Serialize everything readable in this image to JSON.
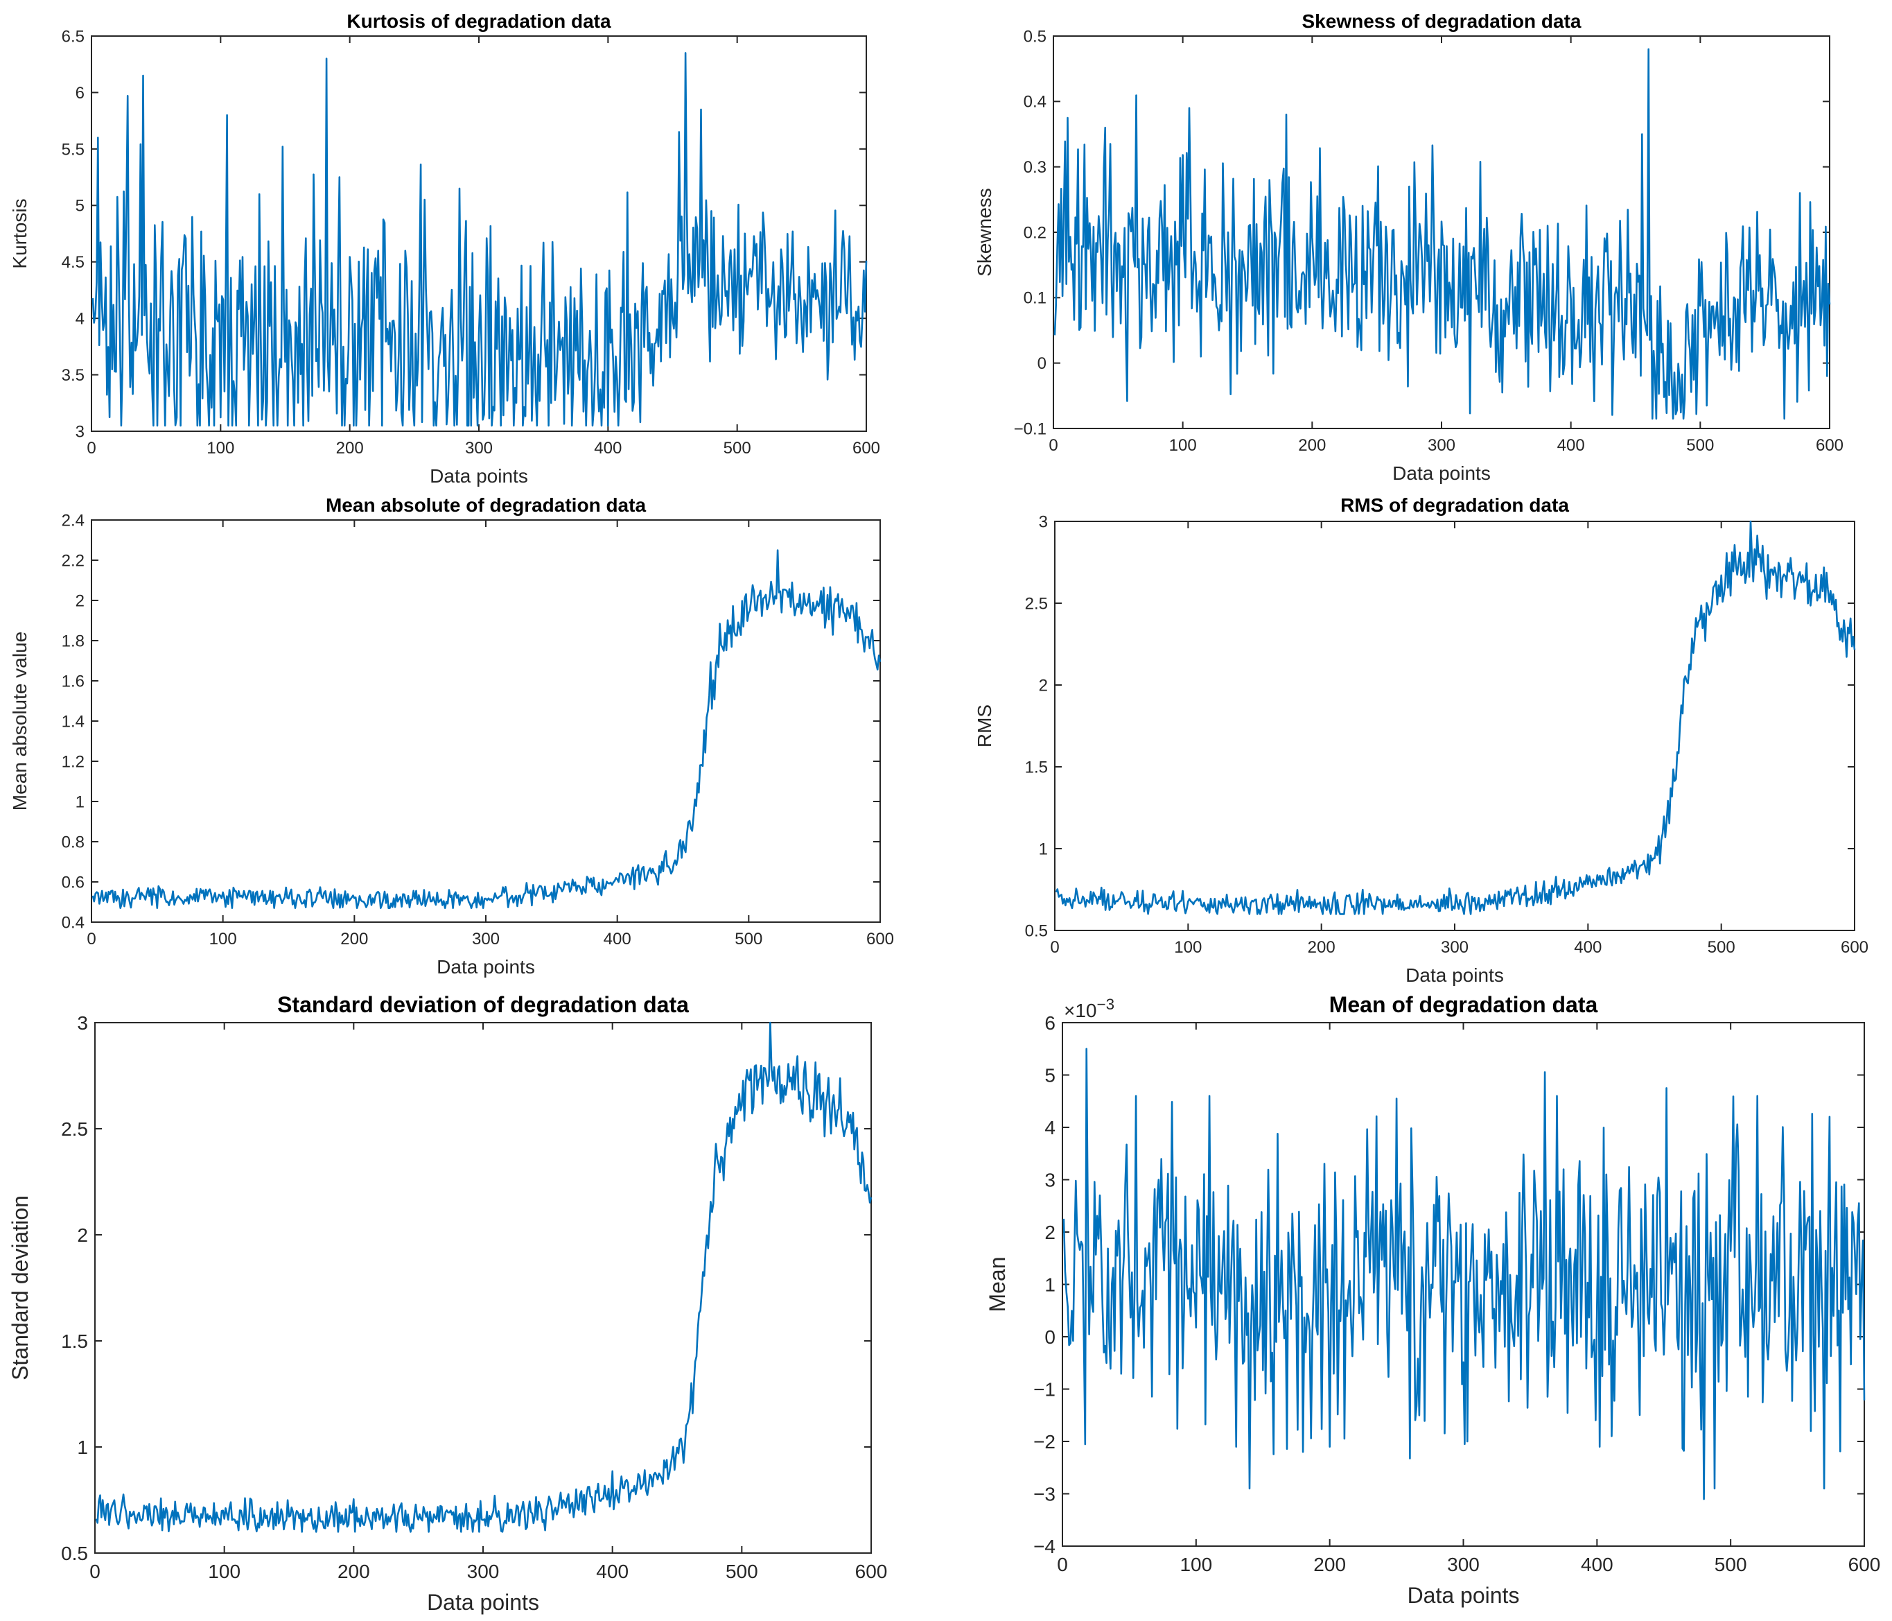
{
  "figure": {
    "background": "#ffffff",
    "line_color": "#0072bd",
    "axis_color": "#262626"
  },
  "chart_data": [
    {
      "id": "kurtosis",
      "type": "line",
      "title": "Kurtosis of degradation data",
      "xlabel": "Data points",
      "ylabel": "Kurtosis",
      "xlim": [
        0,
        600
      ],
      "ylim": [
        3,
        6.5
      ],
      "xticks": [
        0,
        100,
        200,
        300,
        400,
        500,
        600
      ],
      "yticks": [
        3,
        3.5,
        4,
        4.5,
        5,
        5.5,
        6,
        6.5
      ],
      "exponent": "",
      "grid": false,
      "x_range": [
        1,
        600
      ],
      "series": [
        {
          "name": "Kurtosis",
          "color": "#0072bd",
          "baseline": [
            [
              0,
              4.0
            ],
            [
              50,
              3.95
            ],
            [
              100,
              3.9
            ],
            [
              200,
              3.8
            ],
            [
              300,
              3.7
            ],
            [
              400,
              3.55
            ],
            [
              440,
              3.9
            ],
            [
              455,
              4.3
            ],
            [
              480,
              4.35
            ],
            [
              560,
              4.25
            ],
            [
              600,
              3.95
            ]
          ],
          "noise_amplitude": [
            [
              0,
              0.6
            ],
            [
              420,
              0.5
            ],
            [
              440,
              0.3
            ],
            [
              600,
              0.35
            ]
          ],
          "spikes": [
            [
              5,
              5.6
            ],
            [
              28,
              5.97
            ],
            [
              40,
              6.15
            ],
            [
              105,
              5.8
            ],
            [
              130,
              5.1
            ],
            [
              148,
              5.52
            ],
            [
              182,
              6.3
            ],
            [
              192,
              5.25
            ],
            [
              258,
              5.05
            ],
            [
              285,
              5.15
            ],
            [
              455,
              5.65
            ],
            [
              460,
              6.35
            ],
            [
              472,
              5.85
            ],
            [
              480,
              4.95
            ]
          ],
          "clip": [
            3.05,
            6.4
          ],
          "seed": 11
        }
      ]
    },
    {
      "id": "skewness",
      "type": "line",
      "title": "Skewness of degradation data",
      "xlabel": "Data points",
      "ylabel": "Skewness",
      "xlim": [
        0,
        600
      ],
      "ylim": [
        -0.1,
        0.5
      ],
      "xticks": [
        0,
        100,
        200,
        300,
        400,
        500,
        600
      ],
      "yticks": [
        -0.1,
        0,
        0.1,
        0.2,
        0.3,
        0.4,
        0.5
      ],
      "exponent": "",
      "grid": false,
      "x_range": [
        1,
        600
      ],
      "series": [
        {
          "name": "Skewness",
          "color": "#0072bd",
          "baseline": [
            [
              0,
              0.17
            ],
            [
              100,
              0.15
            ],
            [
              200,
              0.14
            ],
            [
              300,
              0.12
            ],
            [
              400,
              0.1
            ],
            [
              440,
              0.1
            ],
            [
              450,
              0.09
            ],
            [
              465,
              0.0
            ],
            [
              480,
              -0.02
            ],
            [
              500,
              0.05
            ],
            [
              550,
              0.09
            ],
            [
              600,
              0.1
            ]
          ],
          "noise_amplitude": [
            [
              0,
              0.09
            ],
            [
              400,
              0.07
            ],
            [
              600,
              0.06
            ]
          ],
          "spikes": [
            [
              40,
              0.36
            ],
            [
              105,
              0.39
            ],
            [
              180,
              0.38
            ],
            [
              275,
              0.27
            ],
            [
              455,
              0.35
            ],
            [
              460,
              0.48
            ],
            [
              565,
              -0.085
            ],
            [
              598,
              -0.02
            ]
          ],
          "clip": [
            -0.085,
            0.48
          ],
          "seed": 23
        }
      ]
    },
    {
      "id": "mean-absolute",
      "type": "line",
      "title": "Mean absolute of degradation data",
      "xlabel": "Data points",
      "ylabel": "Mean absolute value",
      "xlim": [
        0,
        600
      ],
      "ylim": [
        0.4,
        2.4
      ],
      "xticks": [
        0,
        100,
        200,
        300,
        400,
        500,
        600
      ],
      "yticks": [
        0.4,
        0.6,
        0.8,
        1,
        1.2,
        1.4,
        1.6,
        1.8,
        2,
        2.2,
        2.4
      ],
      "exponent": "",
      "grid": false,
      "x_range": [
        1,
        600
      ],
      "series": [
        {
          "name": "Mean absolute value",
          "color": "#0072bd",
          "baseline": [
            [
              0,
              0.53
            ],
            [
              100,
              0.52
            ],
            [
              200,
              0.51
            ],
            [
              300,
              0.51
            ],
            [
              350,
              0.55
            ],
            [
              400,
              0.61
            ],
            [
              430,
              0.66
            ],
            [
              445,
              0.72
            ],
            [
              455,
              0.9
            ],
            [
              462,
              1.05
            ],
            [
              470,
              1.5
            ],
            [
              478,
              1.75
            ],
            [
              490,
              1.88
            ],
            [
              500,
              1.96
            ],
            [
              510,
              2.0
            ],
            [
              520,
              2.02
            ],
            [
              560,
              1.97
            ],
            [
              580,
              1.92
            ],
            [
              600,
              1.7
            ]
          ],
          "noise_amplitude": [
            [
              0,
              0.025
            ],
            [
              440,
              0.03
            ],
            [
              470,
              0.06
            ],
            [
              600,
              0.05
            ]
          ],
          "spikes": [
            [
              522,
              2.25
            ]
          ],
          "clip": [
            0.47,
            2.25
          ],
          "seed": 37
        }
      ]
    },
    {
      "id": "rms",
      "type": "line",
      "title": "RMS of degradation data",
      "xlabel": "Data points",
      "ylabel": "RMS",
      "xlim": [
        0,
        600
      ],
      "ylim": [
        0.5,
        3
      ],
      "xticks": [
        0,
        100,
        200,
        300,
        400,
        500,
        600
      ],
      "yticks": [
        0.5,
        1,
        1.5,
        2,
        2.5,
        3
      ],
      "exponent": "",
      "grid": false,
      "x_range": [
        1,
        600
      ],
      "series": [
        {
          "name": "RMS",
          "color": "#0072bd",
          "baseline": [
            [
              0,
              0.7
            ],
            [
              100,
              0.66
            ],
            [
              200,
              0.65
            ],
            [
              300,
              0.66
            ],
            [
              350,
              0.7
            ],
            [
              400,
              0.78
            ],
            [
              430,
              0.85
            ],
            [
              445,
              0.9
            ],
            [
              455,
              1.05
            ],
            [
              462,
              1.25
            ],
            [
              470,
              1.8
            ],
            [
              480,
              2.35
            ],
            [
              495,
              2.55
            ],
            [
              510,
              2.72
            ],
            [
              520,
              2.74
            ],
            [
              560,
              2.65
            ],
            [
              580,
              2.55
            ],
            [
              600,
              2.2
            ]
          ],
          "noise_amplitude": [
            [
              0,
              0.035
            ],
            [
              440,
              0.04
            ],
            [
              470,
              0.08
            ],
            [
              600,
              0.07
            ]
          ],
          "spikes": [
            [
              522,
              3.0
            ]
          ],
          "clip": [
            0.6,
            3.0
          ],
          "seed": 41
        }
      ]
    },
    {
      "id": "std",
      "type": "line",
      "title": "Standard deviation of degradation data",
      "xlabel": "Data points",
      "ylabel": "Standard deviation",
      "xlim": [
        0,
        600
      ],
      "ylim": [
        0.5,
        3
      ],
      "xticks": [
        0,
        100,
        200,
        300,
        400,
        500,
        600
      ],
      "yticks": [
        0.5,
        1,
        1.5,
        2,
        2.5,
        3
      ],
      "exponent": "",
      "grid": false,
      "x_range": [
        1,
        600
      ],
      "series": [
        {
          "name": "Standard deviation",
          "color": "#0072bd",
          "baseline": [
            [
              0,
              0.7
            ],
            [
              100,
              0.67
            ],
            [
              200,
              0.66
            ],
            [
              300,
              0.66
            ],
            [
              350,
              0.7
            ],
            [
              400,
              0.78
            ],
            [
              430,
              0.85
            ],
            [
              445,
              0.9
            ],
            [
              455,
              1.05
            ],
            [
              462,
              1.25
            ],
            [
              470,
              1.8
            ],
            [
              480,
              2.35
            ],
            [
              495,
              2.55
            ],
            [
              510,
              2.72
            ],
            [
              520,
              2.74
            ],
            [
              560,
              2.65
            ],
            [
              580,
              2.55
            ],
            [
              600,
              2.2
            ]
          ],
          "noise_amplitude": [
            [
              0,
              0.035
            ],
            [
              440,
              0.04
            ],
            [
              470,
              0.08
            ],
            [
              600,
              0.07
            ]
          ],
          "spikes": [
            [
              522,
              3.0
            ]
          ],
          "clip": [
            0.6,
            3.0
          ],
          "seed": 53
        }
      ]
    },
    {
      "id": "mean",
      "type": "line",
      "title": "Mean of degradation data",
      "xlabel": "Data points",
      "ylabel": "Mean",
      "xlim": [
        0,
        600
      ],
      "ylim": [
        -4,
        6
      ],
      "xticks": [
        0,
        100,
        200,
        300,
        400,
        500,
        600
      ],
      "yticks": [
        -4,
        -3,
        -2,
        -1,
        0,
        1,
        2,
        3,
        4,
        5,
        6
      ],
      "exponent": "×10^-3",
      "exponent_base": "×10",
      "exponent_power": "-3",
      "grid": false,
      "x_range": [
        1,
        600
      ],
      "series": [
        {
          "name": "Mean",
          "color": "#0072bd",
          "baseline": [
            [
              0,
              1.0
            ],
            [
              600,
              1.0
            ]
          ],
          "noise_amplitude": [
            [
              0,
              1.3
            ],
            [
              600,
              1.3
            ]
          ],
          "spikes": [
            [
              18,
              5.5
            ],
            [
              55,
              4.6
            ],
            [
              110,
              4.6
            ],
            [
              130,
              -2.1
            ],
            [
              140,
              -2.9
            ],
            [
              180,
              -2.2
            ],
            [
              200,
              -2.1
            ],
            [
              250,
              4.55
            ],
            [
              303,
              -2.0
            ],
            [
              370,
              4.6
            ],
            [
              402,
              -2.1
            ],
            [
              452,
              4.75
            ],
            [
              480,
              -3.1
            ],
            [
              488,
              -2.9
            ],
            [
              520,
              4.6
            ],
            [
              560,
              -1.8
            ],
            [
              570,
              -2.9
            ]
          ],
          "clip": [
            -3.1,
            5.5
          ],
          "seed": 67
        }
      ]
    }
  ]
}
